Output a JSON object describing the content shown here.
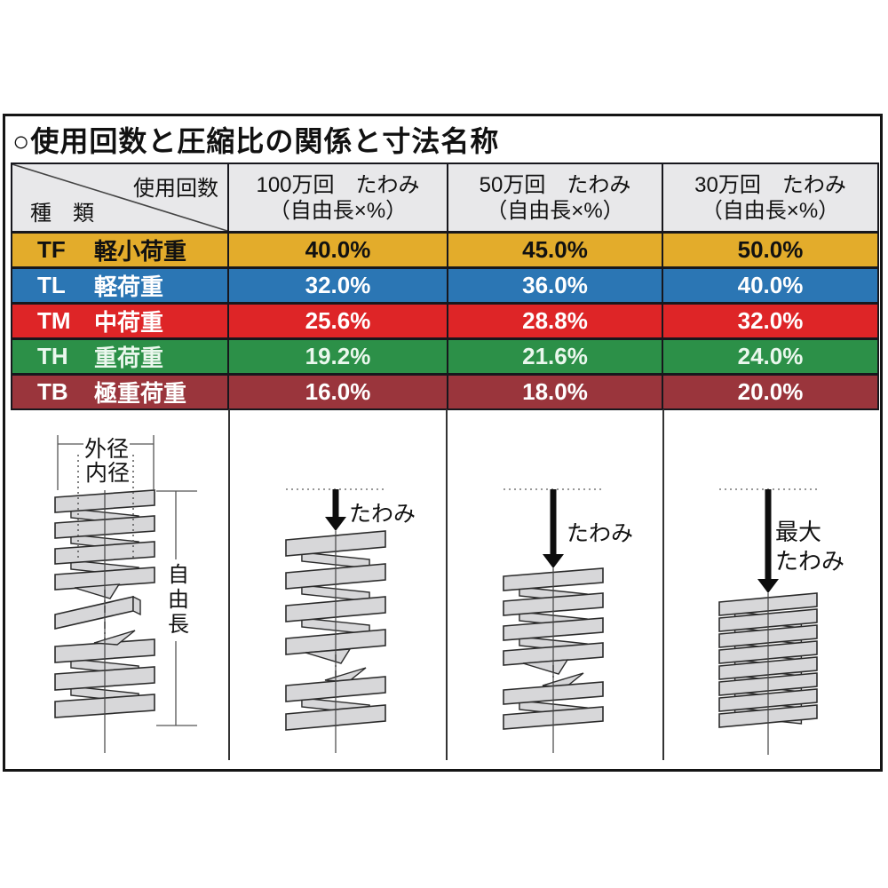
{
  "title": "○使用回数と圧縮比の関係と寸法名称",
  "table": {
    "corner": {
      "top_right": "使用回数",
      "bottom_left": "種　類"
    },
    "columns": [
      {
        "line1": "100万回　たわみ",
        "line2": "（自由長×%）"
      },
      {
        "line1": "50万回　たわみ",
        "line2": "（自由長×%）"
      },
      {
        "line1": "30万回　たわみ",
        "line2": "（自由長×%）"
      }
    ],
    "rows": [
      {
        "code": "TF",
        "name": "軽小荷重",
        "values": [
          "40.0%",
          "45.0%",
          "50.0%"
        ],
        "bg": "#E3AC2B",
        "fg": "#111111"
      },
      {
        "code": "TL",
        "name": "軽荷重",
        "values": [
          "32.0%",
          "36.0%",
          "40.0%"
        ],
        "bg": "#2B76B4",
        "fg": "#FFFFFF"
      },
      {
        "code": "TM",
        "name": "中荷重",
        "values": [
          "25.6%",
          "28.8%",
          "32.0%"
        ],
        "bg": "#DE2527",
        "fg": "#FFFFFF"
      },
      {
        "code": "TH",
        "name": "重荷重",
        "values": [
          "19.2%",
          "21.6%",
          "24.0%"
        ],
        "bg": "#2C9048",
        "fg": "#EAF7ED"
      },
      {
        "code": "TB",
        "name": "極重荷重",
        "values": [
          "16.0%",
          "18.0%",
          "20.0%"
        ],
        "bg": "#9A353C",
        "fg": "#FFFFFF"
      }
    ]
  },
  "diagram": {
    "labels": {
      "outer_diameter": "外径",
      "inner_diameter": "内径",
      "free_length": "自由長",
      "deflection_1m": "たわみ",
      "deflection_500k": "たわみ",
      "deflection_max_line1": "最大",
      "deflection_max_line2": "たわみ"
    }
  },
  "colors": {
    "frame_border": "#151515",
    "header_bg": "#E8E8EA",
    "spring_fill": "#D7D7D9",
    "spring_stroke": "#2B2B2B"
  }
}
